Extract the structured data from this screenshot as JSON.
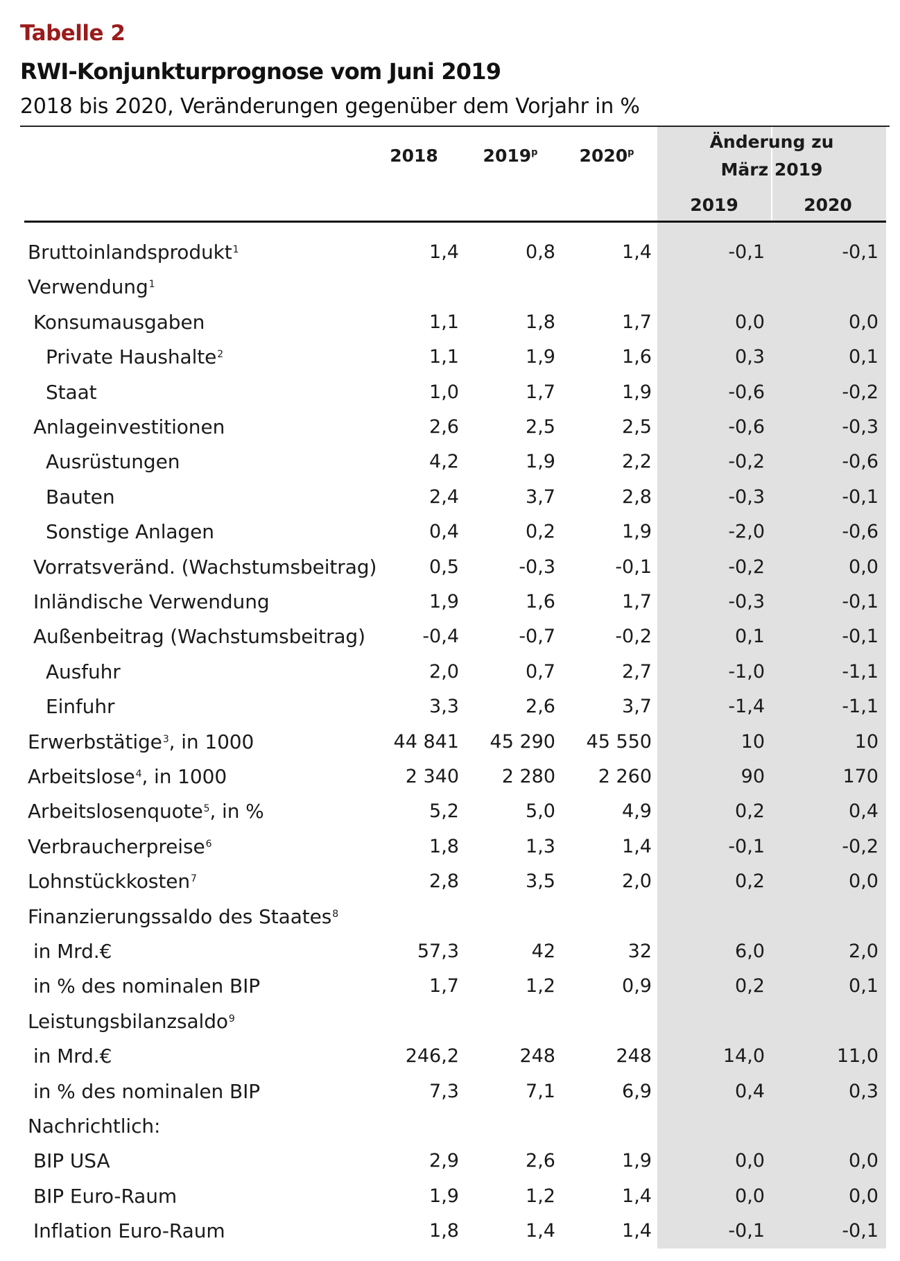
{
  "header": {
    "table_label": "Tabelle 2",
    "title": "RWI-Konjunkturprognose vom Juni 2019",
    "subtitle": "2018 bis 2020, Veränderungen gegenüber dem Vorjahr in %"
  },
  "columns": {
    "y2018": "2018",
    "y2019": "2019",
    "y2019_sup": "p",
    "y2020": "2020",
    "y2020_sup": "p",
    "change_line1": "Änderung zu",
    "change_line2": "März 2019",
    "change_2019": "2019",
    "change_2020": "2020"
  },
  "rows": [
    {
      "label": "Bruttoinlandsprodukt",
      "sup": "1",
      "indent": 0,
      "values": [
        "1,4",
        "0,8",
        "1,4",
        "-0,1",
        "-0,1"
      ]
    },
    {
      "label": "Verwendung",
      "sup": "1",
      "indent": 0,
      "values": [
        "",
        "",
        "",
        "",
        ""
      ]
    },
    {
      "label": "Konsumausgaben",
      "sup": "",
      "indent": 1,
      "values": [
        "1,1",
        "1,8",
        "1,7",
        "0,0",
        "0,0"
      ]
    },
    {
      "label": "Private Haushalte",
      "sup": "2",
      "indent": 2,
      "values": [
        "1,1",
        "1,9",
        "1,6",
        "0,3",
        "0,1"
      ]
    },
    {
      "label": "Staat",
      "sup": "",
      "indent": 2,
      "values": [
        "1,0",
        "1,7",
        "1,9",
        "-0,6",
        "-0,2"
      ]
    },
    {
      "label": "Anlageinvestitionen",
      "sup": "",
      "indent": 1,
      "values": [
        "2,6",
        "2,5",
        "2,5",
        "-0,6",
        "-0,3"
      ]
    },
    {
      "label": "Ausrüstungen",
      "sup": "",
      "indent": 2,
      "values": [
        "4,2",
        "1,9",
        "2,2",
        "-0,2",
        "-0,6"
      ]
    },
    {
      "label": "Bauten",
      "sup": "",
      "indent": 2,
      "values": [
        "2,4",
        "3,7",
        "2,8",
        "-0,3",
        "-0,1"
      ]
    },
    {
      "label": "Sonstige Anlagen",
      "sup": "",
      "indent": 2,
      "values": [
        "0,4",
        "0,2",
        "1,9",
        "-2,0",
        "-0,6"
      ]
    },
    {
      "label": "Vorratsveränd. (Wachstumsbeitrag)",
      "sup": "",
      "indent": 1,
      "values": [
        "0,5",
        "-0,3",
        "-0,1",
        "-0,2",
        "0,0"
      ]
    },
    {
      "label": "Inländische Verwendung",
      "sup": "",
      "indent": 1,
      "values": [
        "1,9",
        "1,6",
        "1,7",
        "-0,3",
        "-0,1"
      ]
    },
    {
      "label": "Außenbeitrag (Wachstumsbeitrag)",
      "sup": "",
      "indent": 1,
      "values": [
        "-0,4",
        "-0,7",
        "-0,2",
        "0,1",
        "-0,1"
      ]
    },
    {
      "label": "Ausfuhr",
      "sup": "",
      "indent": 2,
      "values": [
        "2,0",
        "0,7",
        "2,7",
        "-1,0",
        "-1,1"
      ]
    },
    {
      "label": "Einfuhr",
      "sup": "",
      "indent": 2,
      "values": [
        "3,3",
        "2,6",
        "3,7",
        "-1,4",
        "-1,1"
      ]
    },
    {
      "label": "Erwerbstätige",
      "sup": "3",
      "suffix": ", in 1000",
      "indent": 0,
      "values": [
        "44 841",
        "45 290",
        "45 550",
        "10",
        "10"
      ]
    },
    {
      "label": "Arbeitslose",
      "sup": "4",
      "suffix": ", in 1000",
      "indent": 0,
      "values": [
        "2 340",
        "2 280",
        "2 260",
        "90",
        "170"
      ]
    },
    {
      "label": "Arbeitslosenquote",
      "sup": "5",
      "suffix": ", in %",
      "indent": 0,
      "values": [
        "5,2",
        "5,0",
        "4,9",
        "0,2",
        "0,4"
      ]
    },
    {
      "label": "Verbraucherpreise",
      "sup": "6",
      "indent": 0,
      "values": [
        "1,8",
        "1,3",
        "1,4",
        "-0,1",
        "-0,2"
      ]
    },
    {
      "label": "Lohnstückkosten",
      "sup": "7",
      "indent": 0,
      "values": [
        "2,8",
        "3,5",
        "2,0",
        "0,2",
        "0,0"
      ]
    },
    {
      "label": "Finanzierungssaldo des Staates",
      "sup": "8",
      "indent": 0,
      "values": [
        "",
        "",
        "",
        "",
        ""
      ]
    },
    {
      "label": "in Mrd.€",
      "sup": "",
      "indent": 1,
      "values": [
        "57,3",
        "42",
        "32",
        "6,0",
        "2,0"
      ]
    },
    {
      "label": "in % des nominalen BIP",
      "sup": "",
      "indent": 1,
      "values": [
        "1,7",
        "1,2",
        "0,9",
        "0,2",
        "0,1"
      ]
    },
    {
      "label": "Leistungsbilanzsaldo",
      "sup": "9",
      "indent": 0,
      "values": [
        "",
        "",
        "",
        "",
        ""
      ]
    },
    {
      "label": "in Mrd.€",
      "sup": "",
      "indent": 1,
      "values": [
        "246,2",
        "248",
        "248",
        "14,0",
        "11,0"
      ]
    },
    {
      "label": "in % des nominalen BIP",
      "sup": "",
      "indent": 1,
      "values": [
        "7,3",
        "7,1",
        "6,9",
        "0,4",
        "0,3"
      ]
    },
    {
      "label": "Nachrichtlich:",
      "sup": "",
      "indent": 0,
      "values": [
        "",
        "",
        "",
        "",
        ""
      ]
    },
    {
      "label": "BIP USA",
      "sup": "",
      "indent": 1,
      "values": [
        "2,9",
        "2,6",
        "1,9",
        "0,0",
        "0,0"
      ]
    },
    {
      "label": "BIP Euro-Raum",
      "sup": "",
      "indent": 1,
      "values": [
        "1,9",
        "1,2",
        "1,4",
        "0,0",
        "0,0"
      ]
    },
    {
      "label": "Inflation Euro-Raum",
      "sup": "",
      "indent": 1,
      "values": [
        "1,8",
        "1,4",
        "1,4",
        "-0,1",
        "-0,1"
      ]
    }
  ]
}
